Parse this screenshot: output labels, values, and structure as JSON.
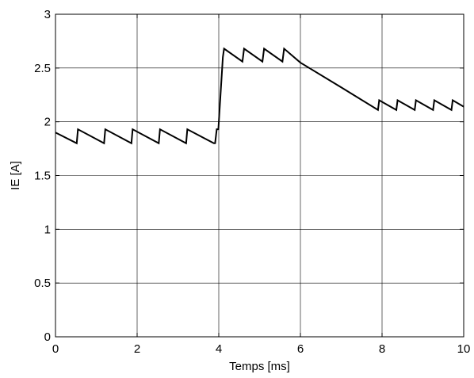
{
  "chart_data": {
    "type": "line",
    "title": "",
    "xlabel": "Temps [ms]",
    "ylabel": "IE [A]",
    "xlim": [
      0,
      10
    ],
    "ylim": [
      0,
      3
    ],
    "xticks": [
      0,
      2,
      4,
      6,
      8,
      10
    ],
    "yticks": [
      0,
      0.5,
      1,
      1.5,
      2,
      2.5,
      3
    ],
    "xtick_labels": [
      "0",
      "2",
      "4",
      "6",
      "8",
      "10"
    ],
    "ytick_labels": [
      "0",
      "0.5",
      "1",
      "1.5",
      "2",
      "2.5",
      "3"
    ],
    "grid": true,
    "legend": "none",
    "series": [
      {
        "color": "#000000",
        "x": [
          0,
          0.52,
          0.55,
          1.19,
          1.22,
          1.86,
          1.89,
          2.53,
          2.56,
          3.2,
          3.23,
          3.88,
          3.91,
          3.95,
          3.99,
          4.1,
          4.13,
          4.58,
          4.62,
          5.07,
          5.11,
          5.56,
          5.6,
          6.0,
          7.0,
          7.9,
          7.93,
          8.35,
          8.38,
          8.8,
          8.83,
          9.25,
          9.28,
          9.7,
          9.73,
          10.0
        ],
        "y": [
          1.9,
          1.8,
          1.93,
          1.8,
          1.93,
          1.8,
          1.93,
          1.8,
          1.93,
          1.8,
          1.93,
          1.8,
          1.8,
          1.93,
          1.93,
          2.6,
          2.68,
          2.56,
          2.68,
          2.56,
          2.68,
          2.56,
          2.68,
          2.55,
          2.32,
          2.11,
          2.2,
          2.11,
          2.2,
          2.11,
          2.2,
          2.11,
          2.2,
          2.11,
          2.2,
          2.14
        ]
      }
    ]
  }
}
